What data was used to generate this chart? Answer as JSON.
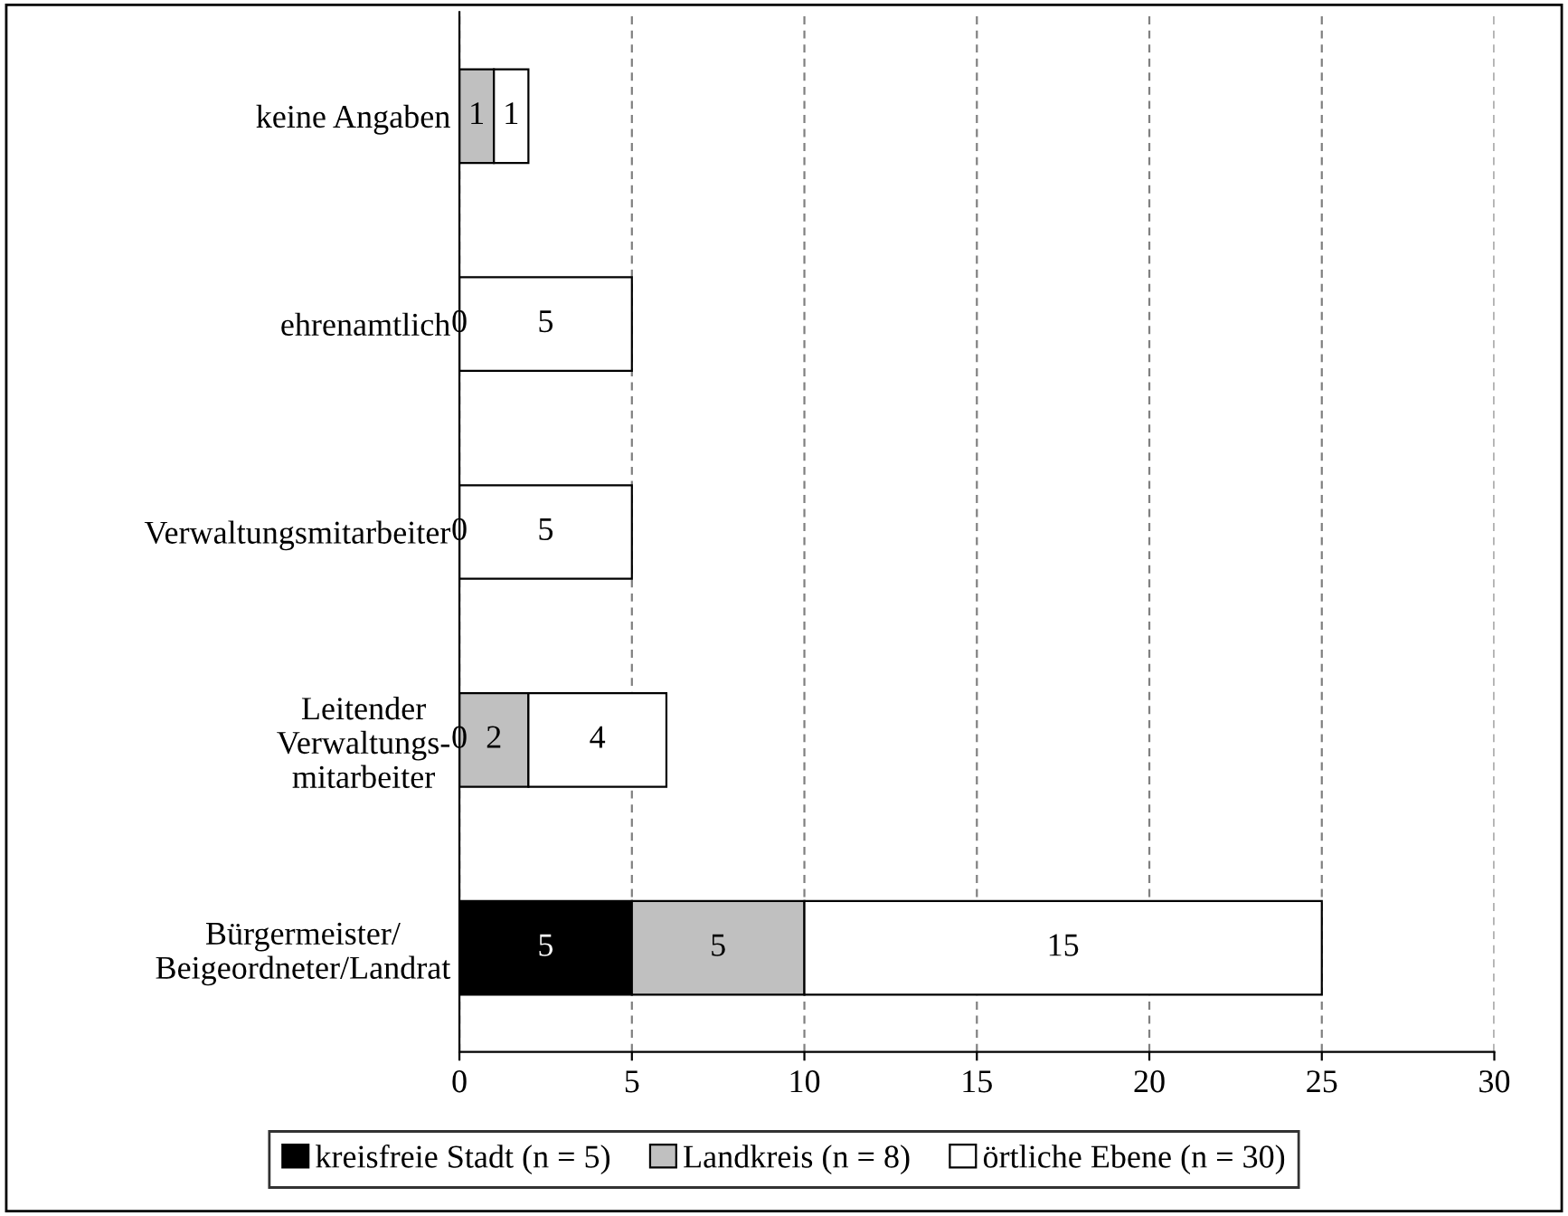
{
  "chart_data": {
    "type": "bar",
    "orientation": "horizontal",
    "stacked": true,
    "categories": [
      "keine Angaben",
      "ehrenamtlich",
      "Verwaltungsmitarbeiter",
      "Leitender\nVerwaltungs-\nmitarbeiter",
      "Bürgermeister/\nBeigeordneter/Landrat"
    ],
    "series": [
      {
        "name": "kreisfreie Stadt (n = 5)",
        "color": "#000000",
        "values": [
          0,
          0,
          0,
          0,
          5
        ],
        "value_labels": [
          null,
          "0",
          "0",
          "0",
          "5"
        ]
      },
      {
        "name": "Landkreis (n = 8)",
        "color": "#c0c0c0",
        "values": [
          1,
          0,
          0,
          2,
          5
        ],
        "value_labels": [
          "1",
          null,
          null,
          "2",
          "5"
        ]
      },
      {
        "name": "örtliche Ebene (n = 30)",
        "color": "#ffffff",
        "values": [
          1,
          5,
          5,
          4,
          15
        ],
        "value_labels": [
          "1",
          "5",
          "5",
          "4",
          "15"
        ]
      }
    ],
    "xlim": [
      0,
      30
    ],
    "xticks": [
      0,
      5,
      10,
      15,
      20,
      25,
      30
    ],
    "grid": "x",
    "legend": "bottom"
  }
}
